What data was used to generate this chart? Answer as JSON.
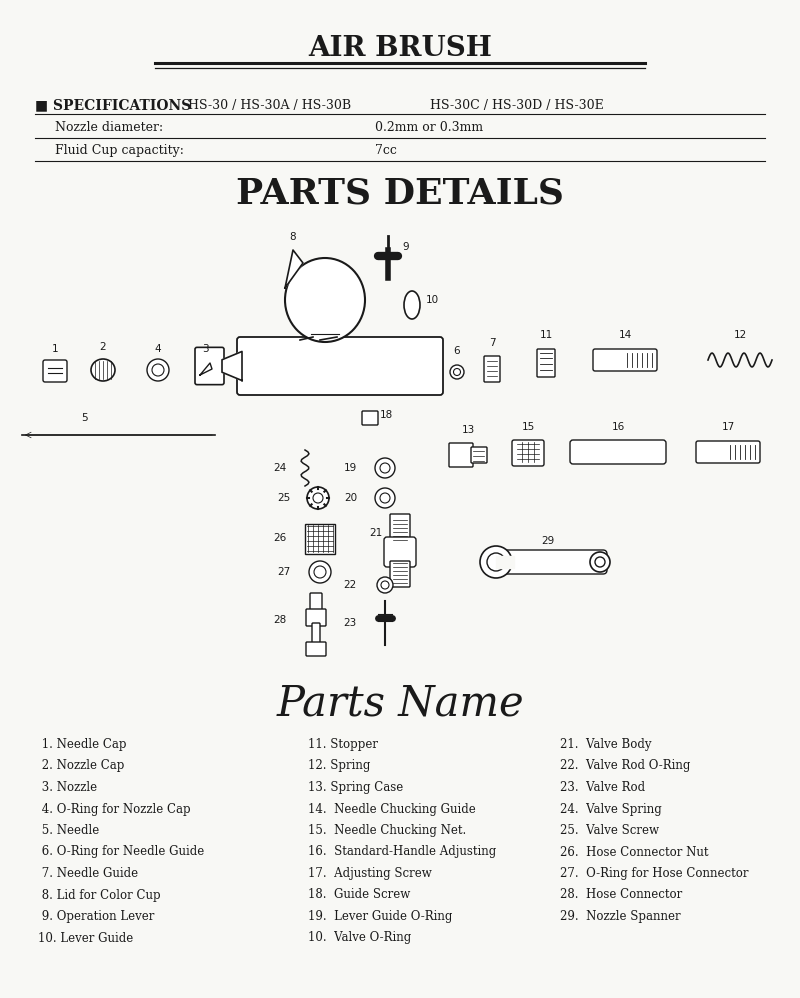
{
  "title": "AIR BRUSH",
  "bg_color": "#f8f8f5",
  "text_color": "#1a1a1a",
  "spec_title": "■ SPECIFICATIONS",
  "spec_models_1": "HS-30 / HS-30A / HS-30B",
  "spec_models_2": "HS-30C / HS-30D / HS-30E",
  "spec_rows": [
    [
      "Nozzle diameter:",
      "0.2mm or 0.3mm"
    ],
    [
      "Fluid Cup capactity:",
      "7cc"
    ]
  ],
  "parts_details_title": "PARTS DETAILS",
  "parts_name_title": "Parts Name",
  "parts_col1": [
    " 1. Needle Cap",
    " 2. Nozzle Cap",
    " 3. Nozzle",
    " 4. O-Ring for Nozzle Cap",
    " 5. Needle",
    " 6. O-Ring for Needle Guide",
    " 7. Needle Guide",
    " 8. Lid for Color Cup",
    " 9. Operation Lever",
    "10. Lever Guide"
  ],
  "parts_col2": [
    "11. Stopper",
    "12. Spring",
    "13. Spring Case",
    "14.  Needle Chucking Guide",
    "15.  Needle Chucking Net.",
    "16.  Standard-Handle Adjusting",
    "17.  Adjusting Screw",
    "18.  Guide Screw",
    "19.  Lever Guide O-Ring",
    "10.  Valve O-Ring"
  ],
  "parts_col3": [
    "21.  Valve Body",
    "22.  Valve Rod O-Ring",
    "23.  Valve Rod",
    "24.  Valve Spring",
    "25.  Valve Screw",
    "26.  Hose Connector Nut",
    "27.  O-Ring for Hose Connector",
    "28.  Hose Connector",
    "29.  Nozzle Spanner"
  ]
}
